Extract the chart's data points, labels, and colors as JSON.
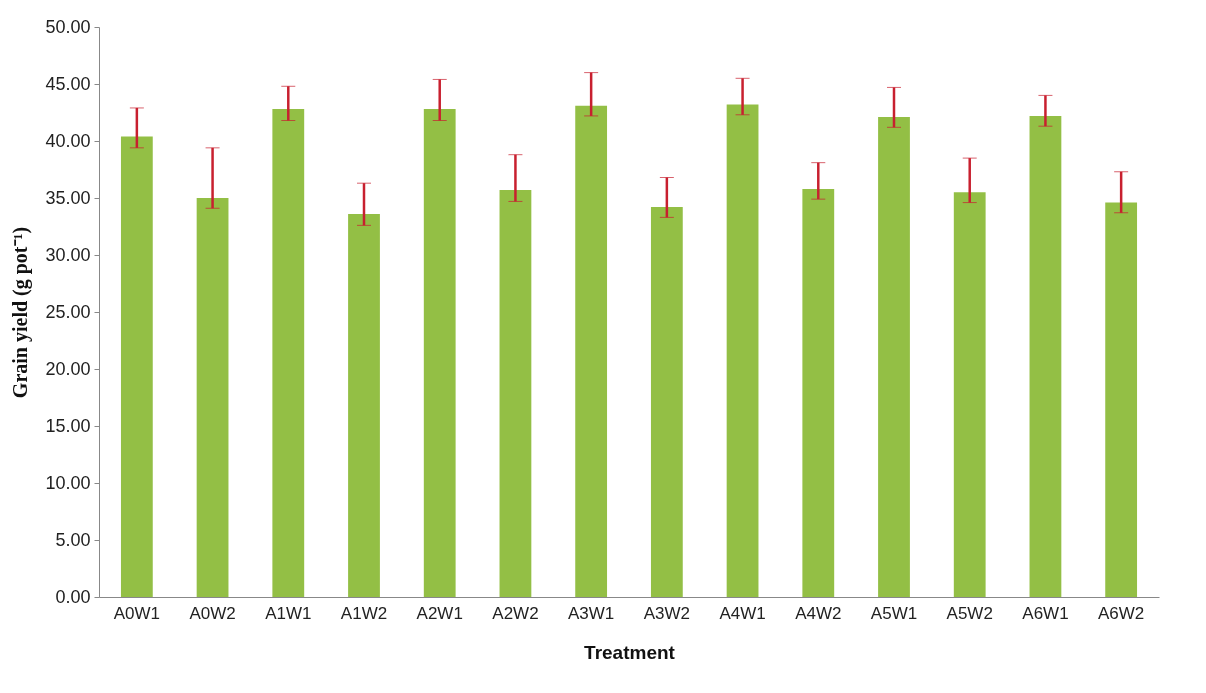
{
  "chart_data": {
    "type": "bar",
    "xlabel": "Treatment",
    "ylabel": "Grain yield (g pot⁻¹)",
    "categories": [
      "A0W1",
      "A0W2",
      "A1W1",
      "A1W2",
      "A2W1",
      "A2W2",
      "A3W1",
      "A3W2",
      "A4W1",
      "A4W2",
      "A5W1",
      "A5W2",
      "A6W1",
      "A6W2"
    ],
    "values": [
      40.4,
      35.0,
      42.8,
      33.6,
      42.8,
      35.7,
      43.1,
      34.2,
      43.2,
      35.8,
      42.1,
      35.5,
      42.2,
      34.6
    ],
    "errors": [
      [
        39.4,
        42.9
      ],
      [
        34.1,
        39.4
      ],
      [
        41.8,
        44.8
      ],
      [
        32.6,
        36.3
      ],
      [
        41.8,
        45.4
      ],
      [
        34.7,
        38.8
      ],
      [
        42.2,
        46.0
      ],
      [
        33.3,
        36.8
      ],
      [
        42.3,
        45.5
      ],
      [
        34.9,
        38.1
      ],
      [
        41.2,
        44.7
      ],
      [
        34.6,
        38.5
      ],
      [
        41.3,
        44.0
      ],
      [
        33.7,
        37.3
      ]
    ],
    "color": "#93bf45",
    "grid": false,
    "ylim": [
      0,
      50
    ],
    "yticks": [
      {
        "value": 0,
        "label": "0.00"
      },
      {
        "value": 5,
        "label": "5.00"
      },
      {
        "value": 10,
        "label": "10.00"
      },
      {
        "value": 15,
        "label": "15.00"
      },
      {
        "value": 20,
        "label": "20.00"
      },
      {
        "value": 25,
        "label": "25.00"
      },
      {
        "value": 30,
        "label": "30.00"
      },
      {
        "value": 35,
        "label": "35.00"
      },
      {
        "value": 40,
        "label": "40.00"
      },
      {
        "value": 45,
        "label": "45.00"
      },
      {
        "value": 50,
        "label": "50.00"
      }
    ]
  }
}
